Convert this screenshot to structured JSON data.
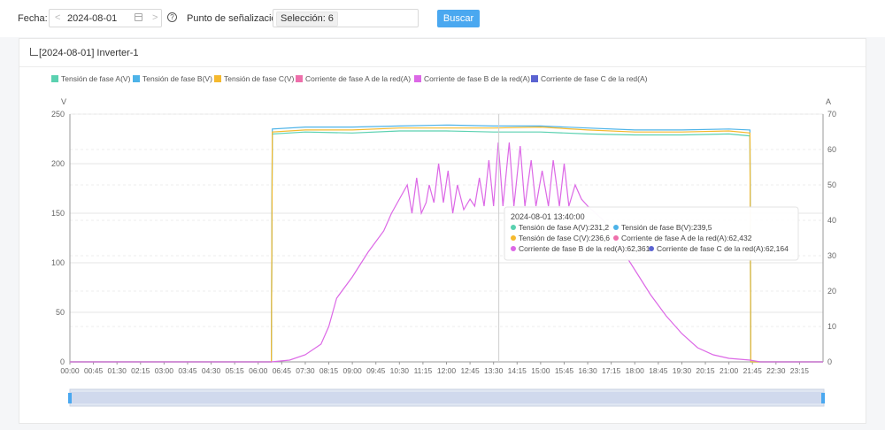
{
  "toolbar": {
    "date_label": "Fecha",
    "date_value": "2024-08-01",
    "prev_arrow": "<",
    "next_arrow": ">",
    "help_glyph": "?",
    "point_label": "Punto de señalización",
    "point_value": "Selección: 6",
    "search_label": "Buscar",
    "colon": ":"
  },
  "panel": {
    "title": "[2024-08-01] Inverter-1"
  },
  "colors": {
    "tension_a": "#5ad1b0",
    "tension_b": "#4db3e8",
    "tension_c": "#f5b92e",
    "corriente_a": "#ee6fab",
    "corriente_b": "#dc68e6",
    "corriente_c": "#5b63d1",
    "accent": "#4aa8f0"
  },
  "chart_data": {
    "type": "line",
    "legend": [
      "Tensión de fase A(V)",
      "Tensión de fase B(V)",
      "Tensión de fase C(V)",
      "Corriente de fase A de la red(A)",
      "Corriente de fase B de la red(A)",
      "Corriente de fase C de la red(A)"
    ],
    "legend_position": "top-left",
    "y_left_unit": "V",
    "y_right_unit": "A",
    "y_left_range": [
      0,
      250
    ],
    "y_right_range": [
      0,
      70
    ],
    "y_left_ticks": [
      "250",
      "200",
      "150",
      "100",
      "50",
      "0"
    ],
    "y_right_ticks": [
      "70",
      "60",
      "50",
      "40",
      "30",
      "20",
      "10",
      "0"
    ],
    "x_ticks": [
      "00:00",
      "00:45",
      "01:30",
      "02:15",
      "03:00",
      "03:45",
      "04:30",
      "05:15",
      "06:00",
      "06:45",
      "07:30",
      "08:15",
      "09:00",
      "09:45",
      "10:30",
      "11:15",
      "12:00",
      "12:45",
      "13:30",
      "14:15",
      "15:00",
      "15:45",
      "16:30",
      "17:15",
      "18:00",
      "18:45",
      "19:30",
      "20:15",
      "21:00",
      "21:45",
      "22:30",
      "23:15"
    ],
    "grid": true,
    "voltage_series": [
      {
        "name": "Tensión de fase A(V)",
        "points": [
          [
            0,
            0
          ],
          [
            6.42,
            0
          ],
          [
            6.45,
            230
          ],
          [
            7.5,
            232
          ],
          [
            9,
            231
          ],
          [
            10.5,
            233
          ],
          [
            12,
            233
          ],
          [
            13.5,
            232
          ],
          [
            15,
            232
          ],
          [
            16.5,
            230
          ],
          [
            18,
            229
          ],
          [
            19.5,
            229
          ],
          [
            21,
            230
          ],
          [
            21.67,
            228
          ],
          [
            21.7,
            0
          ],
          [
            24,
            0
          ]
        ]
      },
      {
        "name": "Tensión de fase B(V)",
        "points": [
          [
            0,
            0
          ],
          [
            6.42,
            0
          ],
          [
            6.45,
            235
          ],
          [
            7.5,
            237
          ],
          [
            9,
            237
          ],
          [
            10.5,
            238
          ],
          [
            12,
            239
          ],
          [
            13.5,
            238
          ],
          [
            15,
            238
          ],
          [
            16.5,
            236
          ],
          [
            18,
            234
          ],
          [
            19.5,
            234
          ],
          [
            21,
            235
          ],
          [
            21.67,
            234
          ],
          [
            21.7,
            0
          ],
          [
            24,
            0
          ]
        ]
      },
      {
        "name": "Tensión de fase C(V)",
        "points": [
          [
            0,
            0
          ],
          [
            6.42,
            0
          ],
          [
            6.45,
            232
          ],
          [
            7.5,
            234
          ],
          [
            9,
            234
          ],
          [
            10.5,
            236
          ],
          [
            12,
            236
          ],
          [
            13.5,
            236
          ],
          [
            15,
            237
          ],
          [
            16.5,
            234
          ],
          [
            18,
            232
          ],
          [
            19.5,
            232
          ],
          [
            21,
            233
          ],
          [
            21.67,
            231
          ],
          [
            21.7,
            0
          ],
          [
            24,
            0
          ]
        ]
      }
    ],
    "current_series": [
      {
        "name": "Corriente de fase A de la red(A)",
        "points": []
      },
      {
        "name": "Corriente de fase B de la red(A)",
        "points": [
          [
            0,
            0
          ],
          [
            6.42,
            0
          ],
          [
            7.0,
            0.5
          ],
          [
            7.5,
            2
          ],
          [
            8.0,
            5
          ],
          [
            8.25,
            10
          ],
          [
            8.5,
            18
          ],
          [
            9.0,
            24
          ],
          [
            9.5,
            31
          ],
          [
            10.0,
            37
          ],
          [
            10.25,
            42
          ],
          [
            10.5,
            46
          ],
          [
            10.75,
            50
          ],
          [
            10.9,
            42
          ],
          [
            11.05,
            52
          ],
          [
            11.2,
            42
          ],
          [
            11.35,
            45
          ],
          [
            11.45,
            50
          ],
          [
            11.6,
            45
          ],
          [
            11.75,
            56
          ],
          [
            11.9,
            45
          ],
          [
            12.05,
            54
          ],
          [
            12.2,
            42
          ],
          [
            12.35,
            50
          ],
          [
            12.55,
            43
          ],
          [
            12.75,
            46
          ],
          [
            12.9,
            44
          ],
          [
            13.05,
            52
          ],
          [
            13.2,
            44
          ],
          [
            13.35,
            57
          ],
          [
            13.5,
            44
          ],
          [
            13.65,
            62
          ],
          [
            13.8,
            44
          ],
          [
            14.0,
            62
          ],
          [
            14.15,
            44
          ],
          [
            14.35,
            61
          ],
          [
            14.5,
            44
          ],
          [
            14.7,
            57
          ],
          [
            14.85,
            44
          ],
          [
            15.05,
            54
          ],
          [
            15.25,
            44
          ],
          [
            15.4,
            57
          ],
          [
            15.6,
            44
          ],
          [
            15.75,
            56
          ],
          [
            15.9,
            44
          ],
          [
            16.1,
            50
          ],
          [
            16.3,
            46
          ],
          [
            16.5,
            44
          ],
          [
            17.0,
            40
          ],
          [
            17.5,
            33
          ],
          [
            18.0,
            26
          ],
          [
            18.5,
            19
          ],
          [
            19.0,
            13
          ],
          [
            19.5,
            8
          ],
          [
            20.0,
            4
          ],
          [
            20.5,
            2
          ],
          [
            21.0,
            1
          ],
          [
            21.67,
            0.5
          ],
          [
            22,
            0
          ],
          [
            24,
            0
          ]
        ]
      },
      {
        "name": "Corriente de fase C de la red(A)",
        "points": []
      }
    ],
    "tooltip": {
      "time": "2024-08-01 13:40:00",
      "entries": [
        {
          "text": "Tensión de fase A(V):231,2",
          "color": "#5ad1b0"
        },
        {
          "text": "Tensión de fase B(V):239,5",
          "color": "#4db3e8"
        },
        {
          "text": "Tensión de fase C(V):236,6",
          "color": "#f5b92e"
        },
        {
          "text": "Corriente de fase A de la red(A):62,432",
          "color": "#ee6fab"
        },
        {
          "text": "Corriente de fase B de la red(A):62,361",
          "color": "#dc68e6"
        },
        {
          "text": "Corriente de fase C de la red(A):62,164",
          "color": "#5b63d1"
        }
      ]
    }
  }
}
